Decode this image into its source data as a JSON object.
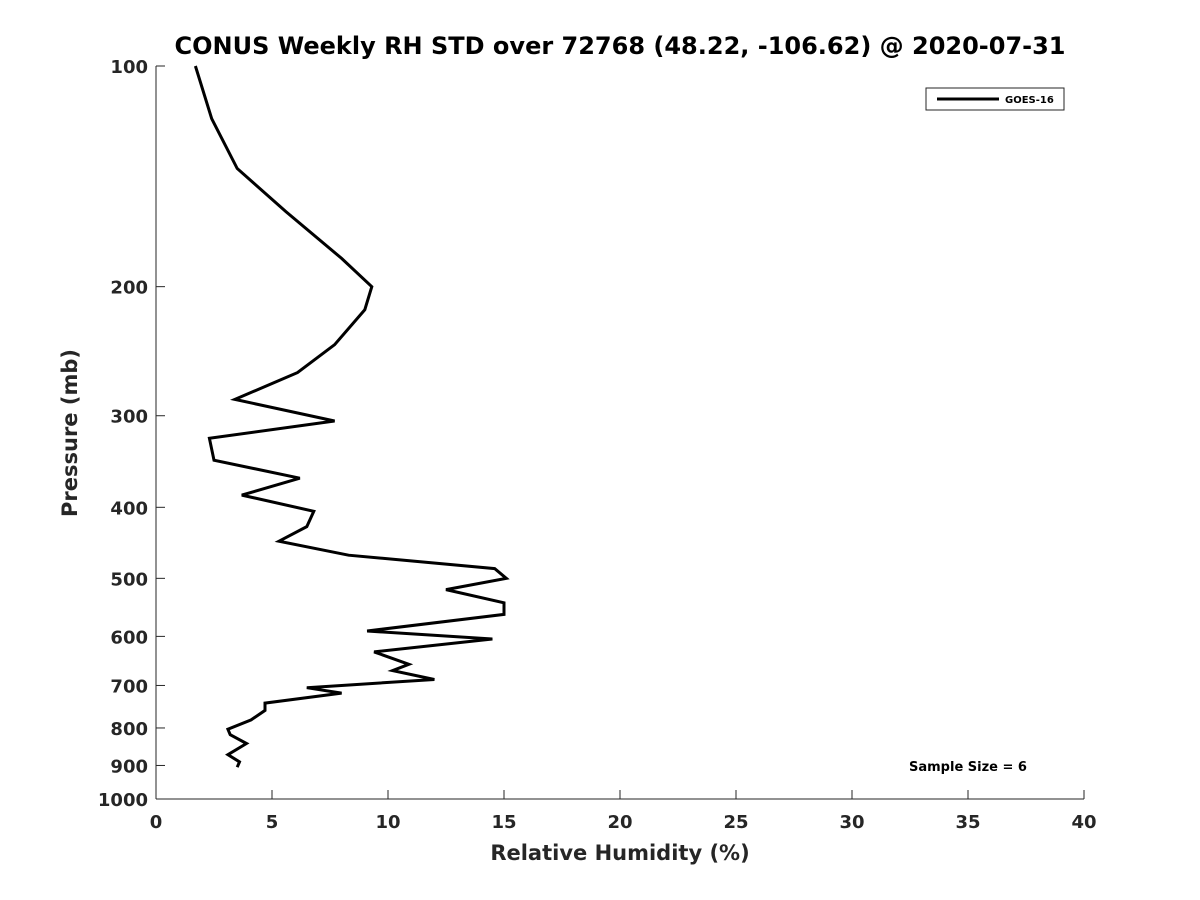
{
  "chart_data": {
    "type": "line",
    "title": "CONUS Weekly RH STD over 72768 (48.22, -106.62) @ 2020-07-31",
    "xlabel": "Relative Humidity (%)",
    "ylabel": "Pressure (mb)",
    "xlim": [
      0,
      40
    ],
    "ylim": [
      100,
      1000
    ],
    "yscale": "log",
    "y_reversed": true,
    "grid": false,
    "x_ticks": [
      0,
      5,
      10,
      15,
      20,
      25,
      30,
      35,
      40
    ],
    "x_tick_labels": [
      "0",
      "5",
      "10",
      "15",
      "20",
      "25",
      "30",
      "35",
      "40"
    ],
    "y_ticks": [
      100,
      200,
      300,
      400,
      500,
      600,
      700,
      800,
      900,
      1000
    ],
    "y_tick_labels": [
      "100",
      "200",
      "300",
      "400",
      "500",
      "600",
      "700",
      "800",
      "900",
      "1000"
    ],
    "legend": {
      "location": "top-right",
      "entries": [
        "GOES-16"
      ]
    },
    "annotation": "Sample Size = 6",
    "series": [
      {
        "name": "GOES-16",
        "color": "#000000",
        "x": [
          1.7,
          2.4,
          3.5,
          5.6,
          8.0,
          9.3,
          9.0,
          7.7,
          6.1,
          3.4,
          7.7,
          2.3,
          2.5,
          6.2,
          3.7,
          6.8,
          6.5,
          5.3,
          8.3,
          14.6,
          15.1,
          12.5,
          15.0,
          15.0,
          9.1,
          14.5,
          9.4,
          10.9,
          10.2,
          12.0,
          6.5,
          8.0,
          4.7,
          4.7,
          4.1,
          3.1,
          3.2,
          3.9,
          3.1,
          3.6,
          3.5
        ],
        "y": [
          100,
          118,
          138,
          158,
          183,
          200,
          215,
          240,
          262,
          285,
          305,
          322,
          345,
          365,
          385,
          405,
          425,
          445,
          465,
          485,
          500,
          518,
          540,
          560,
          590,
          605,
          630,
          655,
          668,
          687,
          705,
          717,
          740,
          757,
          780,
          803,
          817,
          840,
          870,
          890,
          905
        ]
      }
    ]
  }
}
